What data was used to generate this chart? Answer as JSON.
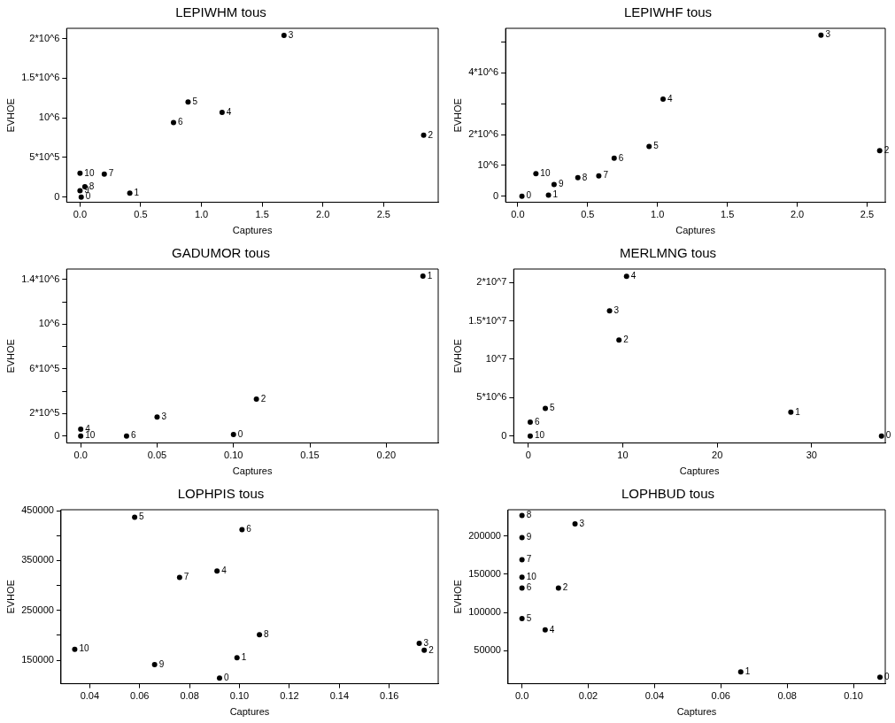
{
  "chart_data": [
    {
      "type": "scatter",
      "title": "LEPIWHM tous",
      "xlabel": "Captures",
      "ylabel": "EVHOE",
      "marker": "circle",
      "series": [
        {
          "name": "0",
          "color": "#000000",
          "x": [
            0.01
          ],
          "values": [
            0
          ]
        },
        {
          "name": "1",
          "color": "#000000",
          "x": [
            0.41
          ],
          "values": [
            50000
          ]
        },
        {
          "name": "2",
          "color": "#000000",
          "x": [
            2.83
          ],
          "values": [
            780000
          ]
        },
        {
          "name": "3",
          "color": "#000000",
          "x": [
            1.68
          ],
          "values": [
            2040000
          ]
        },
        {
          "name": "4",
          "color": "#000000",
          "x": [
            1.17
          ],
          "values": [
            1070000
          ]
        },
        {
          "name": "5",
          "color": "#000000",
          "x": [
            0.89
          ],
          "values": [
            1200000
          ]
        },
        {
          "name": "6",
          "color": "#000000",
          "x": [
            0.77
          ],
          "values": [
            940000
          ]
        },
        {
          "name": "7",
          "color": "#000000",
          "x": [
            0.2
          ],
          "values": [
            290000
          ]
        },
        {
          "name": "8",
          "color": "#000000",
          "x": [
            0.04
          ],
          "values": [
            130000
          ]
        },
        {
          "name": "9",
          "color": "#000000",
          "x": [
            0.0
          ],
          "values": [
            80000
          ]
        },
        {
          "name": "10",
          "color": "#000000",
          "x": [
            0.0
          ],
          "values": [
            300000
          ]
        }
      ],
      "xlim": [
        -0.11,
        2.95
      ],
      "ylim": [
        -66000,
        2130000
      ],
      "xticks": [
        {
          "value": 0,
          "label": "0.0"
        },
        0.5,
        {
          "value": 1,
          "label": "1.0"
        },
        1.5,
        {
          "value": 2,
          "label": "2.0"
        },
        2.5
      ],
      "yticks": [
        0,
        {
          "value": 500000,
          "label": "5*10^5"
        },
        {
          "value": 1000000,
          "label": "10^6"
        },
        {
          "value": 1500000,
          "label": "1.5*10^6"
        },
        {
          "value": 2000000,
          "label": "2*10^6"
        }
      ]
    },
    {
      "type": "scatter",
      "title": "LEPIWHF tous",
      "xlabel": "Captures",
      "ylabel": "EVHOE",
      "marker": "circle",
      "series": [
        {
          "name": "0",
          "color": "#000000",
          "x": [
            0.03
          ],
          "values": [
            0
          ]
        },
        {
          "name": "1",
          "color": "#000000",
          "x": [
            0.22
          ],
          "values": [
            30000
          ]
        },
        {
          "name": "2",
          "color": "#000000",
          "x": [
            2.59
          ],
          "values": [
            1480000
          ]
        },
        {
          "name": "3",
          "color": "#000000",
          "x": [
            2.17
          ],
          "values": [
            5230000
          ]
        },
        {
          "name": "4",
          "color": "#000000",
          "x": [
            1.04
          ],
          "values": [
            3150000
          ]
        },
        {
          "name": "5",
          "color": "#000000",
          "x": [
            0.94
          ],
          "values": [
            1610000
          ]
        },
        {
          "name": "6",
          "color": "#000000",
          "x": [
            0.69
          ],
          "values": [
            1230000
          ]
        },
        {
          "name": "7",
          "color": "#000000",
          "x": [
            0.58
          ],
          "values": [
            660000
          ]
        },
        {
          "name": "8",
          "color": "#000000",
          "x": [
            0.43
          ],
          "values": [
            600000
          ]
        },
        {
          "name": "9",
          "color": "#000000",
          "x": [
            0.26
          ],
          "values": [
            380000
          ]
        },
        {
          "name": "10",
          "color": "#000000",
          "x": [
            0.13
          ],
          "values": [
            730000
          ]
        }
      ],
      "xlim": [
        -0.087,
        2.63
      ],
      "ylim": [
        -200000,
        5450000
      ],
      "xticks": [
        {
          "value": 0,
          "label": "0.0"
        },
        0.5,
        {
          "value": 1,
          "label": "1.0"
        },
        1.5,
        {
          "value": 2,
          "label": "2.0"
        },
        2.5
      ],
      "yticks": [
        0,
        {
          "value": 1000000,
          "label": "10^6"
        },
        {
          "value": 2000000,
          "label": "2*10^6"
        },
        {
          "value": 3000000,
          "label": null
        },
        {
          "value": 4000000,
          "label": "4*10^6"
        },
        {
          "value": 5000000,
          "label": null
        }
      ]
    },
    {
      "type": "scatter",
      "title": "GADUMOR tous",
      "xlabel": "Captures",
      "ylabel": "EVHOE",
      "marker": "circle",
      "series": [
        {
          "name": "0",
          "color": "#000000",
          "x": [
            0.1
          ],
          "values": [
            14000
          ]
        },
        {
          "name": "1",
          "color": "#000000",
          "x": [
            0.224
          ],
          "values": [
            1430000
          ]
        },
        {
          "name": "2",
          "color": "#000000",
          "x": [
            0.115
          ],
          "values": [
            330000
          ]
        },
        {
          "name": "3",
          "color": "#000000",
          "x": [
            0.05
          ],
          "values": [
            170000
          ]
        },
        {
          "name": "4",
          "color": "#000000",
          "x": [
            0.0
          ],
          "values": [
            60000
          ]
        },
        {
          "name": "6",
          "color": "#000000",
          "x": [
            0.03
          ],
          "values": [
            0
          ]
        },
        {
          "name": "10",
          "color": "#000000",
          "x": [
            0.0
          ],
          "values": [
            0
          ]
        }
      ],
      "xlim": [
        -0.0092,
        0.234
      ],
      "ylim": [
        -63000,
        1494000
      ],
      "xticks": [
        {
          "value": 0,
          "label": "0.0"
        },
        0.05,
        {
          "value": 0.1,
          "label": "0.10"
        },
        0.15,
        {
          "value": 0.2,
          "label": "0.20"
        }
      ],
      "yticks": [
        0,
        {
          "value": 200000,
          "label": "2*10^5"
        },
        {
          "value": 400000,
          "label": null
        },
        {
          "value": 600000,
          "label": "6*10^5"
        },
        {
          "value": 800000,
          "label": null
        },
        {
          "value": 1000000,
          "label": "10^6"
        },
        {
          "value": 1200000,
          "label": null
        },
        {
          "value": 1400000,
          "label": "1.4*10^6"
        }
      ]
    },
    {
      "type": "scatter",
      "title": "MERLMNG tous",
      "xlabel": "Captures",
      "ylabel": "EVHOE",
      "marker": "circle",
      "series": [
        {
          "name": "0",
          "color": "#000000",
          "x": [
            37.4
          ],
          "values": [
            0
          ]
        },
        {
          "name": "1",
          "color": "#000000",
          "x": [
            27.8
          ],
          "values": [
            3100000
          ]
        },
        {
          "name": "2",
          "color": "#000000",
          "x": [
            9.6
          ],
          "values": [
            12500000
          ]
        },
        {
          "name": "3",
          "color": "#000000",
          "x": [
            8.6
          ],
          "values": [
            16300000
          ]
        },
        {
          "name": "4",
          "color": "#000000",
          "x": [
            10.4
          ],
          "values": [
            20800000
          ]
        },
        {
          "name": "5",
          "color": "#000000",
          "x": [
            1.8
          ],
          "values": [
            3600000
          ]
        },
        {
          "name": "6",
          "color": "#000000",
          "x": [
            0.2
          ],
          "values": [
            1800000
          ]
        },
        {
          "name": "10",
          "color": "#000000",
          "x": [
            0.2
          ],
          "values": [
            0
          ]
        }
      ],
      "xlim": [
        -1.55,
        37.8
      ],
      "ylim": [
        -920000,
        21760000
      ],
      "xticks": [
        0,
        10,
        20,
        30
      ],
      "yticks": [
        0,
        {
          "value": 5000000,
          "label": "5*10^6"
        },
        {
          "value": 10000000,
          "label": "10^7"
        },
        {
          "value": 15000000,
          "label": "1.5*10^7"
        },
        {
          "value": 20000000,
          "label": "2*10^7"
        }
      ]
    },
    {
      "type": "scatter",
      "title": "LOPHPIS tous",
      "xlabel": "Captures",
      "ylabel": "EVHOE",
      "marker": "circle",
      "series": [
        {
          "name": "0",
          "color": "#000000",
          "x": [
            0.092
          ],
          "values": [
            114000
          ]
        },
        {
          "name": "1",
          "color": "#000000",
          "x": [
            0.099
          ],
          "values": [
            155000
          ]
        },
        {
          "name": "2",
          "color": "#000000",
          "x": [
            0.174
          ],
          "values": [
            170000
          ]
        },
        {
          "name": "3",
          "color": "#000000",
          "x": [
            0.172
          ],
          "values": [
            184000
          ]
        },
        {
          "name": "4",
          "color": "#000000",
          "x": [
            0.091
          ],
          "values": [
            329000
          ]
        },
        {
          "name": "5",
          "color": "#000000",
          "x": [
            0.058
          ],
          "values": [
            437000
          ]
        },
        {
          "name": "6",
          "color": "#000000",
          "x": [
            0.101
          ],
          "values": [
            412000
          ]
        },
        {
          "name": "7",
          "color": "#000000",
          "x": [
            0.076
          ],
          "values": [
            316000
          ]
        },
        {
          "name": "8",
          "color": "#000000",
          "x": [
            0.108
          ],
          "values": [
            201000
          ]
        },
        {
          "name": "9",
          "color": "#000000",
          "x": [
            0.066
          ],
          "values": [
            141000
          ]
        },
        {
          "name": "10",
          "color": "#000000",
          "x": [
            0.034
          ],
          "values": [
            172000
          ]
        }
      ],
      "xlim": [
        0.0285,
        0.1796
      ],
      "ylim": [
        102800,
        452000
      ],
      "xticks": [
        0.04,
        0.06,
        0.08,
        {
          "value": 0.1,
          "label": "0.10"
        },
        0.12,
        0.14,
        0.16
      ],
      "yticks": [
        150000,
        {
          "value": 200000,
          "label": null
        },
        250000,
        {
          "value": 300000,
          "label": null
        },
        350000,
        {
          "value": 400000,
          "label": null
        },
        450000
      ]
    },
    {
      "type": "scatter",
      "title": "LOPHBUD tous",
      "xlabel": "Captures",
      "ylabel": "EVHOE",
      "marker": "circle",
      "series": [
        {
          "name": "0",
          "color": "#000000",
          "x": [
            0.108
          ],
          "values": [
            15000
          ]
        },
        {
          "name": "1",
          "color": "#000000",
          "x": [
            0.066
          ],
          "values": [
            22000
          ]
        },
        {
          "name": "2",
          "color": "#000000",
          "x": [
            0.011
          ],
          "values": [
            132000
          ]
        },
        {
          "name": "3",
          "color": "#000000",
          "x": [
            0.016
          ],
          "values": [
            216000
          ]
        },
        {
          "name": "4",
          "color": "#000000",
          "x": [
            0.007
          ],
          "values": [
            77000
          ]
        },
        {
          "name": "5",
          "color": "#000000",
          "x": [
            0.0
          ],
          "values": [
            92000
          ]
        },
        {
          "name": "6",
          "color": "#000000",
          "x": [
            0.0
          ],
          "values": [
            132000
          ]
        },
        {
          "name": "7",
          "color": "#000000",
          "x": [
            0.0
          ],
          "values": [
            169000
          ]
        },
        {
          "name": "8",
          "color": "#000000",
          "x": [
            0.0
          ],
          "values": [
            227000
          ]
        },
        {
          "name": "9",
          "color": "#000000",
          "x": [
            0.0
          ],
          "values": [
            198000
          ]
        },
        {
          "name": "10",
          "color": "#000000",
          "x": [
            0.0
          ],
          "values": [
            146000
          ]
        }
      ],
      "xlim": [
        -0.0042,
        0.1096
      ],
      "ylim": [
        6600,
        234500
      ],
      "xticks": [
        {
          "value": 0,
          "label": "0.0"
        },
        0.02,
        0.04,
        0.06,
        0.08,
        {
          "value": 0.1,
          "label": "0.10"
        }
      ],
      "yticks": [
        50000,
        100000,
        150000,
        200000
      ]
    }
  ]
}
